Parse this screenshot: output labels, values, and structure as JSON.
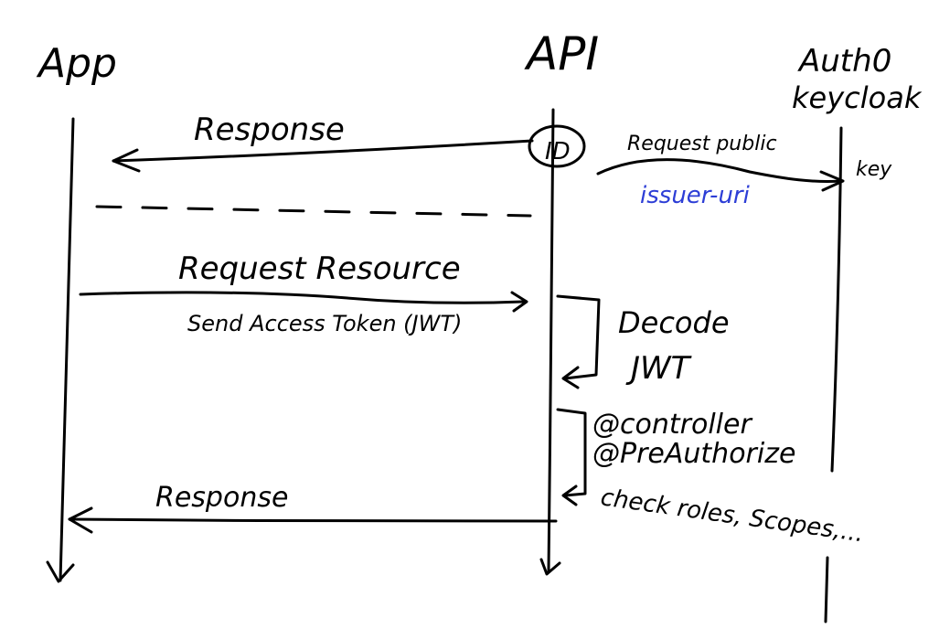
{
  "participants": {
    "app": "App",
    "api": "API",
    "auth_line1": "Auth0",
    "auth_line2": "keycloak"
  },
  "labels": {
    "id_badge": "ID",
    "response_top": "Response",
    "request_public_key": "Request public",
    "key_word": "key",
    "issuer_uri": "issuer-uri",
    "request_resource": "Request Resource",
    "send_access_token": "Send Access Token (JWT)",
    "decode_line1": "Decode",
    "decode_line2": "JWT",
    "controller": "@controller",
    "preauthorize": "@PreAuthorize",
    "check_roles": "check roles, Scopes,...",
    "response_bottom": "Response"
  },
  "colors": {
    "ink": "#000000",
    "issuer_uri": "#2d3ed6"
  }
}
